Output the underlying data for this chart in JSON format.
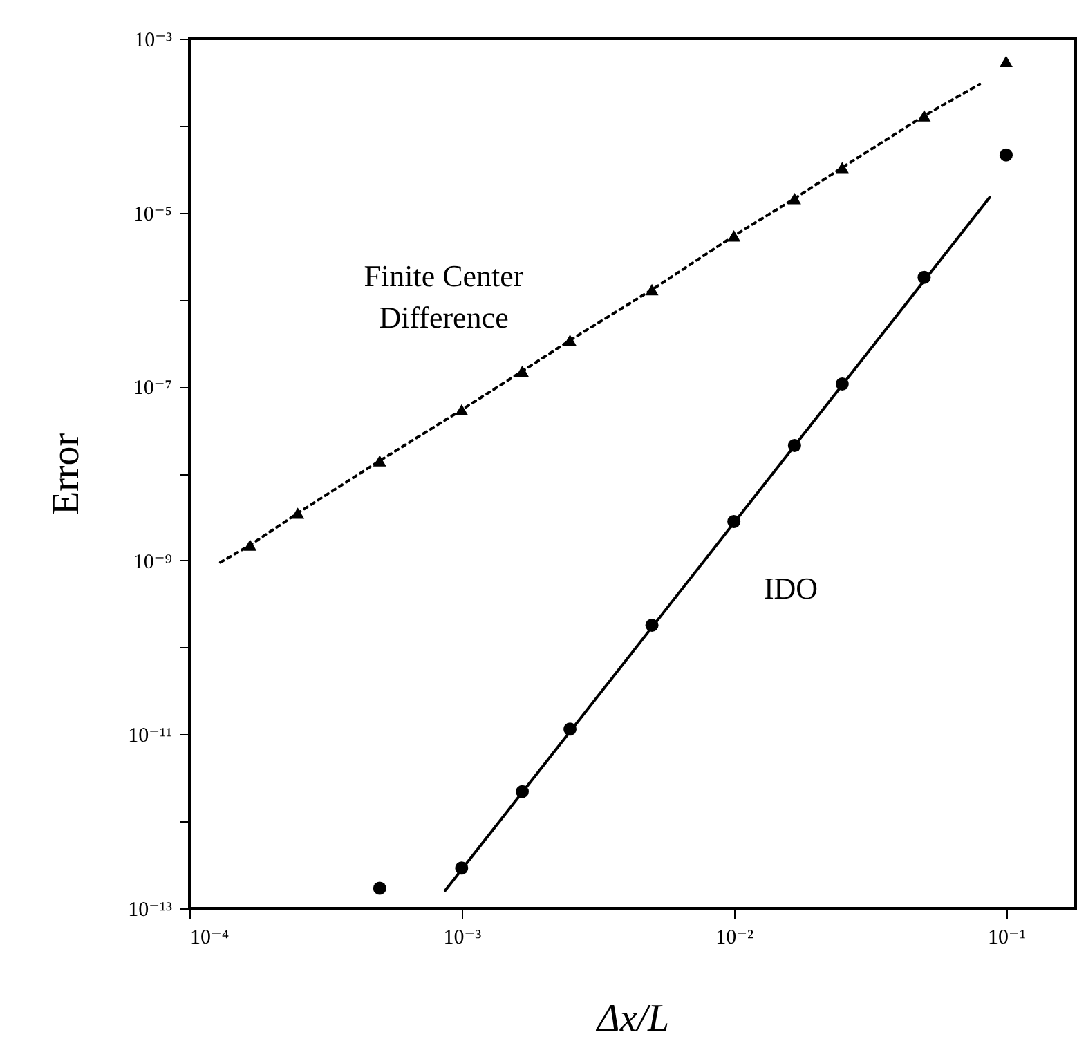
{
  "chart_data": {
    "type": "scatter",
    "xlabel": "Δx/L",
    "ylabel": "Error",
    "log": "xy",
    "xlim": [
      0.0001,
      0.18
    ],
    "ylim": [
      1e-13,
      0.001
    ],
    "xticks": [
      {
        "value": 0.0001,
        "label": "10⁻⁴"
      },
      {
        "value": 0.001,
        "label": "10⁻³"
      },
      {
        "value": 0.01,
        "label": "10⁻²"
      },
      {
        "value": 0.1,
        "label": "10⁻¹"
      }
    ],
    "yticks": [
      {
        "value": 1e-13,
        "label": "10⁻¹³"
      },
      {
        "value": 1e-12,
        "label": null
      },
      {
        "value": 1e-11,
        "label": "10⁻¹¹"
      },
      {
        "value": 1e-10,
        "label": null
      },
      {
        "value": 1e-09,
        "label": "10⁻⁹"
      },
      {
        "value": 1e-08,
        "label": null
      },
      {
        "value": 1e-07,
        "label": "10⁻⁷"
      },
      {
        "value": 1e-06,
        "label": null
      },
      {
        "value": 1e-05,
        "label": "10⁻⁵"
      },
      {
        "value": 0.0001,
        "label": null
      },
      {
        "value": 0.001,
        "label": "10⁻³"
      }
    ],
    "series": [
      {
        "type": "line",
        "line_style": "dotted",
        "marker": "none",
        "color": "#000000",
        "x": [
          0.00013,
          0.000167,
          0.00025,
          0.0005,
          0.001,
          0.00167,
          0.0025,
          0.005,
          0.01,
          0.0167,
          0.025,
          0.05,
          0.08
        ],
        "values": [
          9.5e-10,
          1.5e-09,
          3.5e-09,
          1.4e-08,
          5.4e-08,
          1.5e-07,
          3.4e-07,
          1.3e-06,
          5.4e-06,
          1.45e-05,
          3.3e-05,
          0.00013,
          0.0003
        ]
      },
      {
        "marker": "triangle",
        "color": "#000000",
        "x": [
          0.000167,
          0.00025,
          0.0005,
          0.001,
          0.00167,
          0.0025,
          0.005,
          0.01,
          0.0167,
          0.025,
          0.05,
          0.1
        ],
        "values": [
          1.5e-09,
          3.5e-09,
          1.4e-08,
          5.4e-08,
          1.5e-07,
          3.4e-07,
          1.3e-06,
          5.4e-06,
          1.45e-05,
          3.3e-05,
          0.00013,
          0.00055
        ]
      },
      {
        "type": "line",
        "line_style": "solid",
        "marker": "none",
        "color": "#000000",
        "x": [
          0.00087,
          0.087
        ],
        "values": [
          1.6e-13,
          1.5e-05
        ]
      },
      {
        "marker": "circle",
        "color": "#000000",
        "x": [
          0.0005,
          0.001,
          0.00167,
          0.0025,
          0.005,
          0.01,
          0.0167,
          0.025,
          0.05,
          0.1
        ],
        "values": [
          1.7e-13,
          2.9e-13,
          2.2e-12,
          1.15e-11,
          1.8e-10,
          2.8e-09,
          2.1e-08,
          1.07e-07,
          1.8e-06,
          4.6e-05
        ]
      }
    ],
    "annotations": [
      "Finite Center Difference",
      "IDO"
    ]
  }
}
